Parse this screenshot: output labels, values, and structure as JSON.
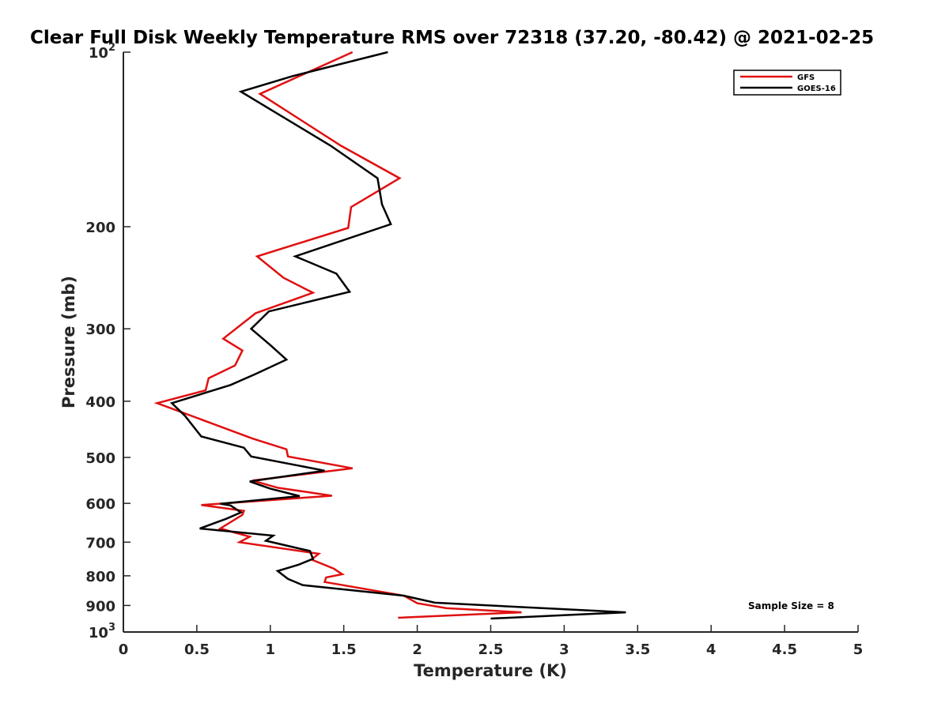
{
  "chart_data": {
    "type": "line",
    "title": "Clear Full Disk Weekly Temperature RMS over 72318 (37.20, -80.42) @ 2021-02-25",
    "xlabel": "Temperature (K)",
    "ylabel": "Pressure (mb)",
    "xlim": [
      0,
      5
    ],
    "ylim": [
      100,
      1000
    ],
    "yscale": "log",
    "y_reversed": true,
    "grid": false,
    "legend_position": "top-right",
    "x_ticks": [
      "0",
      "0.5",
      "1",
      "1.5",
      "2",
      "2.5",
      "3",
      "3.5",
      "4",
      "4.5",
      "5"
    ],
    "y_ticks": [
      {
        "value": 100,
        "base": "10",
        "exp": "2"
      },
      {
        "value": 200,
        "base": "200",
        "exp": ""
      },
      {
        "value": 300,
        "base": "300",
        "exp": ""
      },
      {
        "value": 400,
        "base": "400",
        "exp": ""
      },
      {
        "value": 500,
        "base": "500",
        "exp": ""
      },
      {
        "value": 600,
        "base": "600",
        "exp": ""
      },
      {
        "value": 700,
        "base": "700",
        "exp": ""
      },
      {
        "value": 800,
        "base": "800",
        "exp": ""
      },
      {
        "value": 900,
        "base": "900",
        "exp": ""
      },
      {
        "value": 1000,
        "base": "10",
        "exp": "3"
      }
    ],
    "annotation": "Sample Size = 8",
    "series": [
      {
        "name": "GFS",
        "color": "#e01010",
        "points": [
          [
            1.56,
            100
          ],
          [
            0.93,
            118
          ],
          [
            1.48,
            145
          ],
          [
            1.88,
            165
          ],
          [
            1.55,
            185
          ],
          [
            1.53,
            201
          ],
          [
            0.91,
            225
          ],
          [
            1.09,
            245
          ],
          [
            1.29,
            260
          ],
          [
            0.9,
            282
          ],
          [
            0.68,
            312
          ],
          [
            0.81,
            327
          ],
          [
            0.76,
            347
          ],
          [
            0.58,
            365
          ],
          [
            0.56,
            383
          ],
          [
            0.23,
            403
          ],
          [
            0.54,
            431
          ],
          [
            0.88,
            464
          ],
          [
            1.11,
            484
          ],
          [
            1.12,
            498
          ],
          [
            1.56,
            522
          ],
          [
            0.88,
            548
          ],
          [
            1.05,
            564
          ],
          [
            1.42,
            582
          ],
          [
            0.53,
            604
          ],
          [
            0.82,
            618
          ],
          [
            0.81,
            628
          ],
          [
            0.66,
            663
          ],
          [
            0.86,
            685
          ],
          [
            0.79,
            700
          ],
          [
            1.33,
            733
          ],
          [
            1.28,
            750
          ],
          [
            1.43,
            777
          ],
          [
            1.49,
            795
          ],
          [
            1.38,
            805
          ],
          [
            1.37,
            820
          ],
          [
            1.91,
            866
          ],
          [
            2.0,
            892
          ],
          [
            2.2,
            910
          ],
          [
            2.71,
            925
          ],
          [
            1.87,
            945
          ]
        ]
      },
      {
        "name": "GOES-16",
        "color": "#000000",
        "points": [
          [
            1.8,
            100
          ],
          [
            1.15,
            110
          ],
          [
            0.8,
            117
          ],
          [
            1.41,
            145
          ],
          [
            1.73,
            165
          ],
          [
            1.76,
            183
          ],
          [
            1.82,
            198
          ],
          [
            1.17,
            225
          ],
          [
            1.45,
            241
          ],
          [
            1.54,
            259
          ],
          [
            0.99,
            280
          ],
          [
            0.87,
            300
          ],
          [
            1.0,
            320
          ],
          [
            1.11,
            339
          ],
          [
            0.9,
            359
          ],
          [
            0.73,
            375
          ],
          [
            0.33,
            403
          ],
          [
            0.42,
            424
          ],
          [
            0.53,
            460
          ],
          [
            0.82,
            481
          ],
          [
            0.87,
            498
          ],
          [
            1.37,
            527
          ],
          [
            0.86,
            550
          ],
          [
            1.0,
            566
          ],
          [
            1.2,
            583
          ],
          [
            0.66,
            601
          ],
          [
            0.73,
            605
          ],
          [
            0.8,
            622
          ],
          [
            0.7,
            638
          ],
          [
            0.52,
            663
          ],
          [
            1.02,
            682
          ],
          [
            0.97,
            696
          ],
          [
            1.27,
            725
          ],
          [
            1.29,
            748
          ],
          [
            1.19,
            766
          ],
          [
            1.05,
            785
          ],
          [
            1.12,
            810
          ],
          [
            1.22,
            830
          ],
          [
            1.91,
            866
          ],
          [
            2.12,
            890
          ],
          [
            3.42,
            925
          ],
          [
            2.5,
            948
          ]
        ]
      }
    ]
  }
}
